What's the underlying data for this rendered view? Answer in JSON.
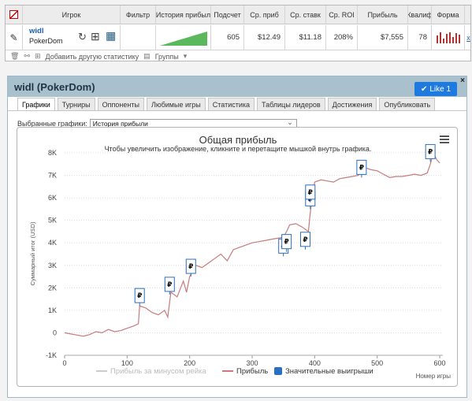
{
  "stats": {
    "headers": [
      "Игрок",
      "Фильтр",
      "История прибыл",
      "Подсчет",
      "Ср. приб",
      "Ср. ставк",
      "Ср. ROI",
      "Прибыль",
      "Квалиф",
      "Форма"
    ],
    "player_name": "widl",
    "player_site": "PokerDom",
    "count": "605",
    "avg_profit": "$12.49",
    "avg_stake": "$11.18",
    "avg_roi": "208%",
    "profit": "$7,555",
    "qualification": "78",
    "remove": "x",
    "history_spark": [
      0,
      1,
      2,
      3,
      4,
      5,
      6,
      7,
      8,
      9,
      10
    ],
    "form_bars": [
      10,
      14,
      6,
      12,
      14,
      8,
      13,
      11
    ],
    "form_color": "#b33333"
  },
  "footer": {
    "add_stats": "Добавить другую статистику",
    "groups": "Группы"
  },
  "dialog": {
    "title": "widl (PokerDom)",
    "like": "Like 1",
    "close": "×",
    "tabs": [
      "Графики",
      "Турниры",
      "Оппоненты",
      "Любимые игры",
      "Статистика",
      "Таблицы лидеров",
      "Достижения",
      "Опубликовать"
    ],
    "active_tab": "Графики",
    "select_label": "Выбранные графики:",
    "select_value": "История прибыли"
  },
  "chart_data": {
    "type": "line",
    "title": "Общая прибыль",
    "subtitle": "Чтобы увеличить изображение, кликните и перетащите мышкой внутрь графика.",
    "xlabel": "Номер игры",
    "ylabel": "Суммарный итог (USD)",
    "xlim": [
      0,
      605
    ],
    "ylim": [
      -1000,
      8000
    ],
    "x_ticks": [
      "0",
      "100",
      "200",
      "300",
      "400",
      "500",
      "600"
    ],
    "y_ticks": [
      "-1K",
      "0",
      "1K",
      "2K",
      "3K",
      "4K",
      "5K",
      "6K",
      "7K",
      "8K"
    ],
    "series": [
      {
        "name": "Прибыль",
        "color": "#c77b7b",
        "x": [
          0,
          10,
          20,
          30,
          40,
          50,
          60,
          70,
          80,
          90,
          100,
          110,
          118,
          120,
          130,
          140,
          150,
          160,
          165,
          170,
          180,
          190,
          195,
          200,
          210,
          220,
          230,
          240,
          250,
          260,
          270,
          280,
          290,
          300,
          310,
          320,
          330,
          340,
          350,
          355,
          360,
          370,
          380,
          390,
          392,
          395,
          400,
          410,
          420,
          430,
          440,
          450,
          460,
          470,
          475,
          480,
          490,
          500,
          510,
          520,
          530,
          540,
          550,
          560,
          570,
          580,
          585,
          590,
          595,
          600
        ],
        "y": [
          0,
          -50,
          -100,
          -150,
          -80,
          50,
          0,
          150,
          50,
          100,
          200,
          300,
          400,
          1200,
          1100,
          900,
          800,
          1000,
          700,
          1800,
          1600,
          2300,
          1800,
          2500,
          3000,
          2900,
          3100,
          3300,
          3500,
          3200,
          3700,
          3800,
          3900,
          4000,
          4050,
          4100,
          4150,
          4200,
          4250,
          4500,
          4800,
          4850,
          4700,
          4500,
          5100,
          5800,
          6700,
          6800,
          6750,
          6700,
          6850,
          6900,
          6950,
          7000,
          7300,
          7350,
          7250,
          7200,
          7050,
          6900,
          6950,
          6950,
          7000,
          7050,
          7000,
          7100,
          7500,
          8000,
          7700,
          7550
        ]
      }
    ],
    "legend": [
      "Прибыль за минусом рейка",
      "Прибыль",
      "Значительные выигрыши"
    ],
    "legend_colors": [
      "#cccccc",
      "#c77b7b",
      "#2b6fc0"
    ],
    "markers_x": [
      120,
      168,
      202,
      350,
      355,
      385,
      393,
      393,
      475,
      585
    ],
    "markers_y": [
      1200,
      1700,
      2500,
      3400,
      3600,
      3700,
      5500,
      5800,
      6900,
      7600
    ],
    "marker_symbol": "₽"
  }
}
